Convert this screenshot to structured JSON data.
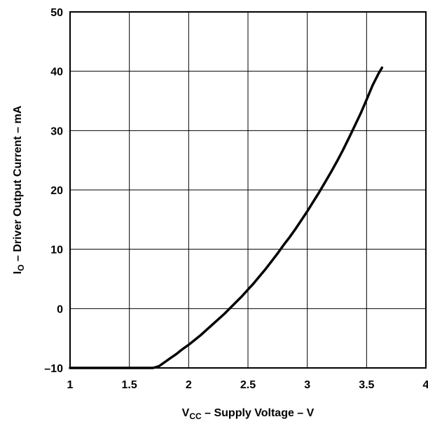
{
  "chart_data": {
    "type": "line",
    "xlim": [
      1,
      4
    ],
    "ylim": [
      -10,
      50
    ],
    "x_ticks": [
      "1",
      "1.5",
      "2",
      "2.5",
      "3",
      "3.5",
      "4"
    ],
    "y_ticks": [
      "–10",
      "0",
      "10",
      "20",
      "30",
      "40",
      "50"
    ],
    "grid": true,
    "xlabel": {
      "main": "V",
      "sub": "CC",
      "rest": " – Supply Voltage – V"
    },
    "ylabel": {
      "main": "I",
      "sub": "O",
      "rest": " – Driver Output Current – mA"
    },
    "series": [
      {
        "x": [
          1.0,
          1.2,
          1.4,
          1.6,
          1.7,
          1.75,
          1.8,
          1.85,
          1.9,
          1.95,
          2.0,
          2.05,
          2.1,
          2.15,
          2.2,
          2.25,
          2.3,
          2.35,
          2.4,
          2.45,
          2.5,
          2.55,
          2.6,
          2.65,
          2.7,
          2.75,
          2.8,
          2.85,
          2.9,
          2.95,
          3.0,
          3.05,
          3.1,
          3.15,
          3.2,
          3.25,
          3.3,
          3.35,
          3.4,
          3.45,
          3.5,
          3.55,
          3.6,
          3.63
        ],
        "y": [
          -10,
          -10,
          -10,
          -10,
          -10,
          -9.7,
          -9.0,
          -8.3,
          -7.6,
          -6.8,
          -6.1,
          -5.3,
          -4.5,
          -3.6,
          -2.7,
          -1.8,
          -0.9,
          0.1,
          1.1,
          2.1,
          3.2,
          4.3,
          5.5,
          6.7,
          8.0,
          9.3,
          10.7,
          12.0,
          13.4,
          14.9,
          16.4,
          18.0,
          19.6,
          21.3,
          23.0,
          24.8,
          26.7,
          28.7,
          30.8,
          32.9,
          35.2,
          37.6,
          39.6,
          40.6
        ]
      }
    ]
  }
}
